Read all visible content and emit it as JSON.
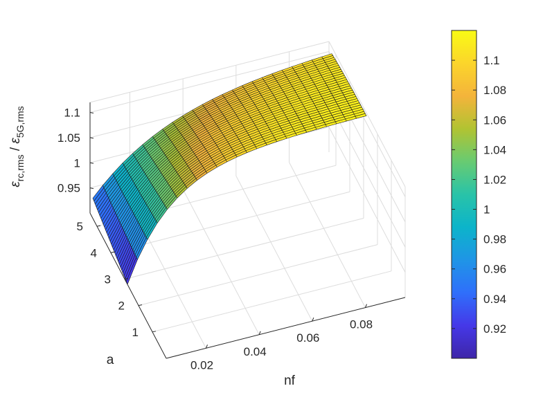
{
  "chart_data": {
    "type": "surface",
    "title": "",
    "xlabel": "nf",
    "ylabel": "a",
    "zlabel": "εrc,rms / ε5G,rms",
    "zlabel_parts": {
      "num_symbol": "ε",
      "num_sub": "rc,rms",
      "separator": " / ",
      "den_symbol": "ε",
      "den_sub": "5G,rms"
    },
    "x_ticks": [
      "0.02",
      "0.04",
      "0.06",
      "0.08"
    ],
    "x_tick_values": [
      0.02,
      0.04,
      0.06,
      0.08
    ],
    "y_ticks": [
      "1",
      "2",
      "3",
      "4",
      "5"
    ],
    "y_tick_values": [
      1,
      2,
      3,
      4,
      5
    ],
    "z_ticks": [
      "0.95",
      "1",
      "1.05",
      "1.1"
    ],
    "z_tick_values": [
      0.95,
      1.0,
      1.05,
      1.1
    ],
    "xlim": [
      0.005,
      0.095
    ],
    "ylim": [
      0,
      5.5
    ],
    "zlim": [
      0.9,
      1.12
    ],
    "surface_domain": {
      "nf_range": [
        0.005,
        0.095
      ],
      "a_range": [
        2.8,
        5.3
      ],
      "z_min": 0.9,
      "z_max": 1.12
    },
    "grid": true,
    "colormap": "parula",
    "colorbar": {
      "position": "right",
      "ticks": [
        "0.92",
        "0.94",
        "0.96",
        "0.98",
        "1",
        "1.02",
        "1.04",
        "1.06",
        "1.08",
        "1.1"
      ],
      "tick_values": [
        0.92,
        0.94,
        0.96,
        0.98,
        1.0,
        1.02,
        1.04,
        1.06,
        1.08,
        1.1
      ],
      "range": [
        0.9,
        1.12
      ]
    }
  }
}
